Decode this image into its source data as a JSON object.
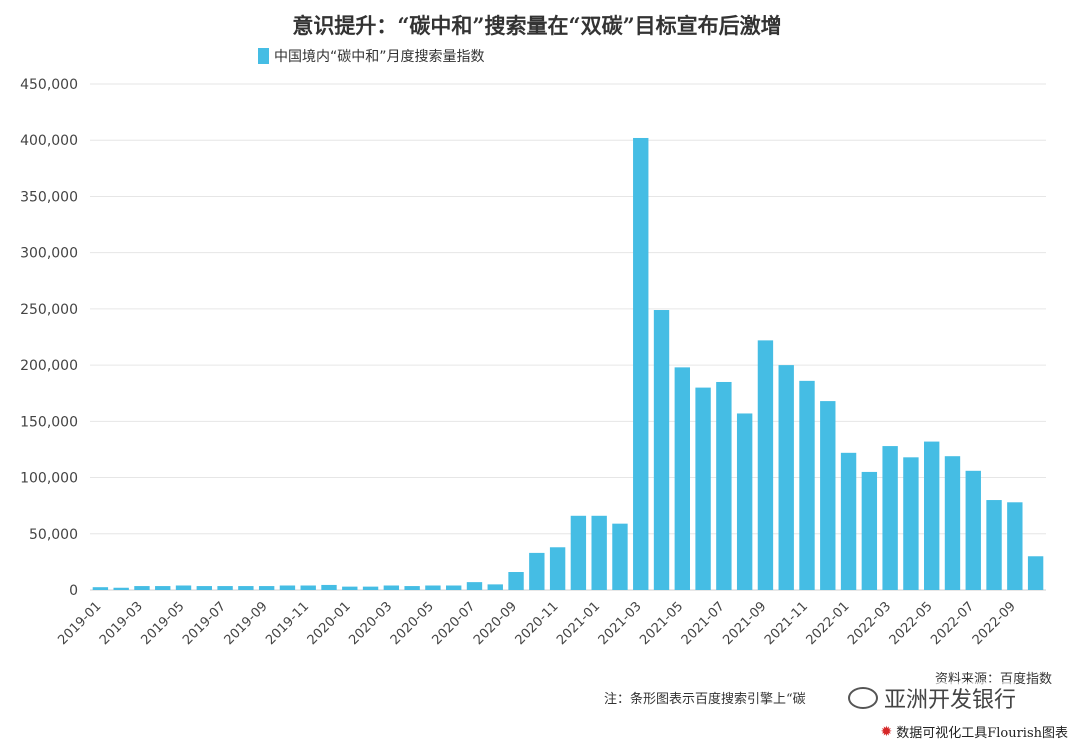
{
  "title": "意识提升：“碳中和”搜索量在“双碳”目标宣布后激增",
  "legend_label": "中国境内“碳中和”月度搜索量指数",
  "source": "资料来源：百度指数",
  "note": "注：条形图表示百度搜索引擎上“碳",
  "watermark": "亚洲开发银行",
  "credit": "数据可视化工具Flourish图表",
  "bar_color": "#45bde4",
  "chart_data": {
    "type": "bar",
    "title": "意识提升：“碳中和”搜索量在“双碳”目标宣布后激增",
    "xlabel": "",
    "ylabel": "",
    "ylim": [
      0,
      450000
    ],
    "yticks": [
      0,
      50000,
      100000,
      150000,
      200000,
      250000,
      300000,
      350000,
      400000,
      450000
    ],
    "ytick_labels": [
      "0",
      "50,000",
      "100,000",
      "150,000",
      "200,000",
      "250,000",
      "300,000",
      "350,000",
      "400,000",
      "450,000"
    ],
    "grid": true,
    "legend_position": "top-left",
    "categories": [
      "2019-01",
      "2019-02",
      "2019-03",
      "2019-04",
      "2019-05",
      "2019-06",
      "2019-07",
      "2019-08",
      "2019-09",
      "2019-10",
      "2019-11",
      "2019-12",
      "2020-01",
      "2020-02",
      "2020-03",
      "2020-04",
      "2020-05",
      "2020-06",
      "2020-07",
      "2020-08",
      "2020-09",
      "2020-10",
      "2020-11",
      "2020-12",
      "2021-01",
      "2021-02",
      "2021-03",
      "2021-04",
      "2021-05",
      "2021-06",
      "2021-07",
      "2021-08",
      "2021-09",
      "2021-10",
      "2021-11",
      "2021-12",
      "2022-01",
      "2022-02",
      "2022-03",
      "2022-04",
      "2022-05",
      "2022-06",
      "2022-07",
      "2022-08",
      "2022-09",
      "2022-10"
    ],
    "xtick_labels": [
      "2019-01",
      "",
      "2019-03",
      "",
      "2019-05",
      "",
      "2019-07",
      "",
      "2019-09",
      "",
      "2019-11",
      "",
      "2020-01",
      "",
      "2020-03",
      "",
      "2020-05",
      "",
      "2020-07",
      "",
      "2020-09",
      "",
      "2020-11",
      "",
      "2021-01",
      "",
      "2021-03",
      "",
      "2021-05",
      "",
      "2021-07",
      "",
      "2021-09",
      "",
      "2021-11",
      "",
      "2022-01",
      "",
      "2022-03",
      "",
      "2022-05",
      "",
      "2022-07",
      "",
      "2022-09",
      ""
    ],
    "series": [
      {
        "name": "中国境内“碳中和”月度搜索量指数",
        "values": [
          2500,
          2000,
          3500,
          3500,
          4000,
          3500,
          3500,
          3500,
          3500,
          4000,
          4000,
          4500,
          3000,
          3000,
          4000,
          3500,
          4000,
          4000,
          7000,
          5000,
          16000,
          33000,
          38000,
          66000,
          66000,
          59000,
          402000,
          249000,
          198000,
          180000,
          185000,
          157000,
          222000,
          200000,
          186000,
          168000,
          122000,
          105000,
          128000,
          118000,
          132000,
          119000,
          106000,
          80000,
          78000,
          30000
        ]
      }
    ]
  }
}
